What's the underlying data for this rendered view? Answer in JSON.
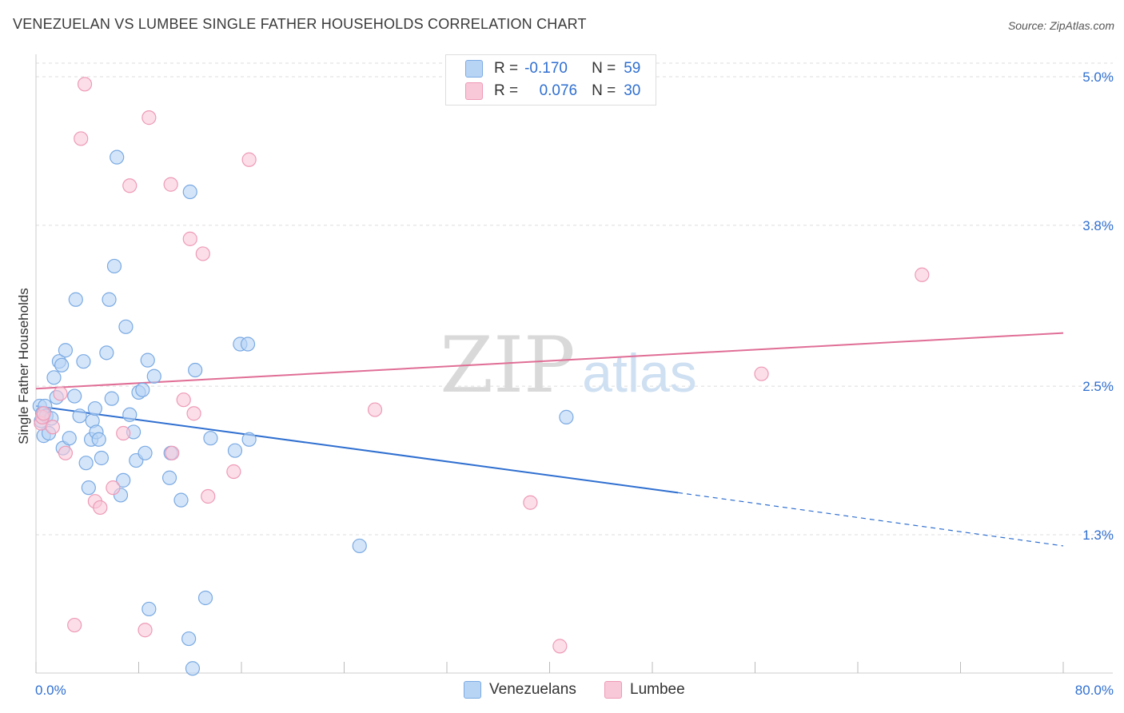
{
  "title": "VENEZUELAN VS LUMBEE SINGLE FATHER HOUSEHOLDS CORRELATION CHART",
  "source": "Source: ZipAtlas.com",
  "watermark": {
    "zip": "ZIP",
    "atlas": "atlas"
  },
  "legend": {
    "venezuelans": {
      "r_label": "R =",
      "r_value": "-0.170",
      "n_label": "N =",
      "n_value": "59"
    },
    "lumbee": {
      "r_label": "R =",
      "r_value": "0.076",
      "n_label": "N =",
      "n_value": "30"
    }
  },
  "colors": {
    "venezuelans_fill": "#b8d4f5",
    "venezuelans_stroke": "#7aaae3",
    "venezuelans_line": "#2f6fd0",
    "lumbee_fill": "#f8c8d8",
    "lumbee_stroke": "#ee9ab6",
    "lumbee_line": "#e06e96",
    "axis_label": "#2f6fd0",
    "grid": "#dddddd"
  },
  "chart_data": {
    "type": "scatter",
    "title": "VENEZUELAN VS LUMBEE SINGLE FATHER HOUSEHOLDS CORRELATION CHART",
    "xlabel": "",
    "ylabel": "Single Father Households",
    "xlim": [
      0,
      80
    ],
    "ylim": [
      0,
      5.2
    ],
    "x_tick_labels": [
      "0.0%",
      "80.0%"
    ],
    "y_ticks": [
      1.3,
      2.5,
      3.8,
      5.0
    ],
    "y_tick_labels": [
      "1.3%",
      "2.5%",
      "3.8%",
      "5.0%"
    ],
    "grid": true,
    "legend_position": "bottom-center",
    "series": [
      {
        "name": "Venezuelans",
        "points": [
          [
            0.3,
            2.34
          ],
          [
            0.4,
            2.22
          ],
          [
            0.5,
            2.28
          ],
          [
            0.6,
            2.1
          ],
          [
            0.7,
            2.34
          ],
          [
            0.8,
            2.26
          ],
          [
            1.0,
            2.12
          ],
          [
            1.2,
            2.24
          ],
          [
            1.4,
            2.57
          ],
          [
            1.6,
            2.41
          ],
          [
            1.8,
            2.7
          ],
          [
            2.0,
            2.67
          ],
          [
            2.1,
            2.0
          ],
          [
            2.3,
            2.79
          ],
          [
            2.6,
            2.08
          ],
          [
            3.0,
            2.42
          ],
          [
            3.1,
            3.2
          ],
          [
            3.4,
            2.26
          ],
          [
            3.7,
            2.7
          ],
          [
            3.9,
            1.88
          ],
          [
            4.1,
            1.68
          ],
          [
            4.3,
            2.07
          ],
          [
            4.4,
            2.22
          ],
          [
            4.6,
            2.32
          ],
          [
            4.7,
            2.13
          ],
          [
            4.9,
            2.07
          ],
          [
            5.1,
            1.92
          ],
          [
            5.5,
            2.77
          ],
          [
            5.7,
            3.2
          ],
          [
            5.9,
            2.4
          ],
          [
            6.1,
            3.47
          ],
          [
            6.3,
            4.35
          ],
          [
            6.6,
            1.62
          ],
          [
            6.8,
            1.74
          ],
          [
            7.0,
            2.98
          ],
          [
            7.3,
            2.27
          ],
          [
            7.6,
            2.13
          ],
          [
            7.8,
            1.9
          ],
          [
            8.0,
            2.45
          ],
          [
            8.3,
            2.47
          ],
          [
            8.5,
            1.96
          ],
          [
            8.7,
            2.71
          ],
          [
            8.8,
            0.7
          ],
          [
            9.2,
            2.58
          ],
          [
            10.4,
            1.76
          ],
          [
            10.5,
            1.96
          ],
          [
            11.3,
            1.58
          ],
          [
            11.9,
            0.46
          ],
          [
            12.0,
            4.07
          ],
          [
            12.2,
            0.22
          ],
          [
            12.4,
            2.63
          ],
          [
            13.2,
            0.79
          ],
          [
            13.6,
            2.08
          ],
          [
            15.5,
            1.98
          ],
          [
            15.9,
            2.84
          ],
          [
            16.5,
            2.84
          ],
          [
            16.6,
            2.07
          ],
          [
            25.2,
            1.21
          ],
          [
            41.3,
            2.25
          ]
        ]
      },
      {
        "name": "Lumbee",
        "points": [
          [
            0.4,
            2.2
          ],
          [
            0.5,
            2.25
          ],
          [
            0.6,
            2.28
          ],
          [
            1.3,
            2.17
          ],
          [
            1.9,
            2.44
          ],
          [
            2.3,
            1.96
          ],
          [
            3.0,
            0.57
          ],
          [
            3.5,
            4.5
          ],
          [
            3.8,
            4.94
          ],
          [
            4.6,
            1.57
          ],
          [
            5.0,
            1.52
          ],
          [
            6.0,
            1.68
          ],
          [
            6.8,
            2.12
          ],
          [
            7.3,
            4.12
          ],
          [
            8.5,
            0.53
          ],
          [
            8.8,
            4.67
          ],
          [
            10.5,
            4.13
          ],
          [
            10.6,
            1.96
          ],
          [
            11.5,
            2.39
          ],
          [
            12.0,
            3.69
          ],
          [
            12.3,
            2.28
          ],
          [
            13.0,
            3.57
          ],
          [
            13.4,
            1.61
          ],
          [
            15.4,
            1.81
          ],
          [
            16.6,
            4.33
          ],
          [
            26.4,
            2.31
          ],
          [
            38.5,
            1.56
          ],
          [
            40.8,
            0.4
          ],
          [
            56.5,
            2.6
          ],
          [
            69.0,
            3.4
          ]
        ]
      }
    ],
    "trendlines": [
      {
        "name": "Venezuelans",
        "solid": {
          "x1": 0,
          "y1": 2.34,
          "x2": 50,
          "y2": 1.64
        },
        "dashed": {
          "x1": 50,
          "y1": 1.64,
          "x2": 80,
          "y2": 1.21
        }
      },
      {
        "name": "Lumbee",
        "solid": {
          "x1": 0,
          "y1": 2.48,
          "x2": 80,
          "y2": 2.93
        }
      }
    ]
  }
}
